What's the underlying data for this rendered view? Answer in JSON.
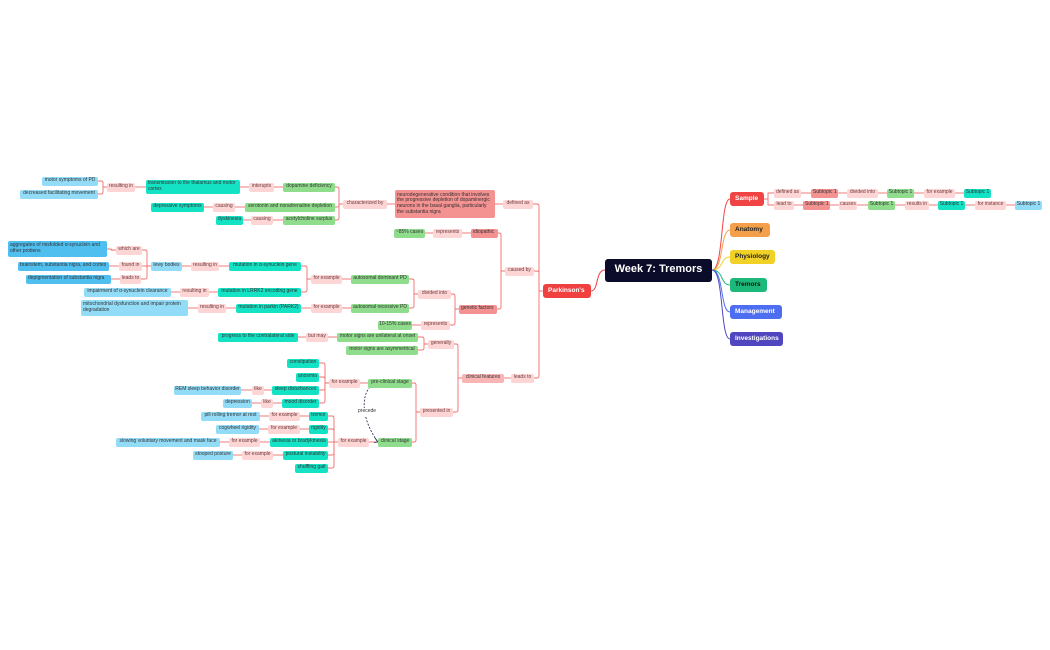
{
  "root": {
    "id": "root",
    "text": "Week 7: Tremors",
    "style": "root"
  },
  "branches": [
    {
      "id": "sample",
      "text": "Sample",
      "color": "#f04444",
      "text_color": "#ffffff"
    },
    {
      "id": "anatomy",
      "text": "Anatomy",
      "color": "#f4a04a",
      "text_color": "#222222"
    },
    {
      "id": "physiology",
      "text": "Physiology",
      "color": "#f2d126",
      "text_color": "#222222"
    },
    {
      "id": "tremors",
      "text": "Tremors",
      "color": "#1db97a",
      "text_color": "#111111"
    },
    {
      "id": "management",
      "text": "Management",
      "color": "#4e6ef2",
      "text_color": "#ffffff"
    },
    {
      "id": "investigations",
      "text": "Investigations",
      "color": "#5046c0",
      "text_color": "#ffffff"
    }
  ],
  "sample_rows": [
    [
      {
        "text": "defined as",
        "style": "pink"
      },
      {
        "text": "Subtopic 1",
        "style": "red"
      },
      {
        "text": "divided into",
        "style": "pink"
      },
      {
        "text": "Subtopic 1",
        "style": "green"
      },
      {
        "text": "for example",
        "style": "pink"
      },
      {
        "text": "Subtopic 1",
        "style": "teal"
      }
    ],
    [
      {
        "text": "lead to",
        "style": "pink"
      },
      {
        "text": "Subtopic 1",
        "style": "red"
      },
      {
        "text": "causes",
        "style": "pink"
      },
      {
        "text": "Subtopic 1",
        "style": "green"
      },
      {
        "text": "results in",
        "style": "pink"
      },
      {
        "text": "Subtopic 1",
        "style": "teal"
      },
      {
        "text": "for instance",
        "style": "pink"
      },
      {
        "text": "Subtopic 1",
        "style": "lblue"
      }
    ]
  ],
  "parkinsons": {
    "id": "n77",
    "text": "Parkinson's",
    "color": "#f04040"
  },
  "nodes": {
    "n1": {
      "text": "motor symptoms of PD",
      "style": "lblue",
      "parent": "n3"
    },
    "n2": {
      "text": "decreased facilitating movement",
      "style": "lblue",
      "parent": "n3"
    },
    "n3": {
      "text": "resulting in",
      "style": "pink",
      "parent": "n4"
    },
    "n4": {
      "text": "transmission to the thalamus and motor cortex",
      "style": "teal",
      "parent": "n5"
    },
    "n5": {
      "text": "interupts",
      "style": "pink",
      "parent": "n6"
    },
    "n6": {
      "text": "dopamine deficiency",
      "style": "green",
      "parent": "n13"
    },
    "n7": {
      "text": "depressive symptoms",
      "style": "teal",
      "parent": "n8"
    },
    "n8": {
      "text": "causing",
      "style": "pink",
      "parent": "n9"
    },
    "n9": {
      "text": "serotonin and noradrenaline depletion",
      "style": "green",
      "parent": "n13"
    },
    "n10": {
      "text": "dyskinesia",
      "style": "teal",
      "parent": "n11"
    },
    "n11": {
      "text": "causing",
      "style": "pink",
      "parent": "n12"
    },
    "n12": {
      "text": "acetylcholine surplus",
      "style": "green",
      "parent": "n13"
    },
    "n13": {
      "text": "characterized by",
      "style": "pink",
      "parent": "n14"
    },
    "n14": {
      "text": "neurodegenerative condition that involves the progressive depletion of dopaminergic neurons in the basal ganglia, particularly the substantia nigra",
      "style": "red",
      "parent": "n15"
    },
    "n15": {
      "text": "defined as",
      "style": "pink",
      "parent": "n77"
    },
    "n16": {
      "text": "~85% cases",
      "style": "green",
      "parent": "n17"
    },
    "n17": {
      "text": "represents",
      "style": "pink",
      "parent": "n18"
    },
    "n18": {
      "text": "idiopathic",
      "style": "red",
      "parent": "n19"
    },
    "n19": {
      "text": "caused by",
      "style": "pink",
      "parent": "n77"
    },
    "n20": {
      "text": "aggregates of misfolded α-synuclein and other protiens",
      "style": "dblue",
      "parent": "n21"
    },
    "n21": {
      "text": "which are",
      "style": "pink",
      "parent": "n26"
    },
    "n22": {
      "text": "brainstem, substantia nigra, and cortex",
      "style": "dblue",
      "parent": "n23"
    },
    "n23": {
      "text": "found in",
      "style": "pink",
      "parent": "n26"
    },
    "n24": {
      "text": "depigmentation of substantia nigra",
      "style": "dblue",
      "parent": "n25"
    },
    "n25": {
      "text": "leads to",
      "style": "pink",
      "parent": "n26"
    },
    "n26": {
      "text": "lewy bodies",
      "style": "lblue",
      "parent": "n27"
    },
    "n27": {
      "text": "resulting in",
      "style": "pink",
      "parent": "n28"
    },
    "n28": {
      "text": "mutation in α-synuclein gene",
      "style": "teal",
      "parent": "n32"
    },
    "n29": {
      "text": "impairment of α-synuclein clearance",
      "style": "lblue",
      "parent": "n30"
    },
    "n30": {
      "text": "resulting in",
      "style": "pink",
      "parent": "n31"
    },
    "n31": {
      "text": "mutation in LRRK2 encoding gene",
      "style": "teal",
      "parent": "n32"
    },
    "n32": {
      "text": "for example",
      "style": "pink",
      "parent": "n33"
    },
    "n33": {
      "text": "autosomal dominant PD",
      "style": "green",
      "parent": "n39"
    },
    "n34": {
      "text": "mitochondrial dysfunction and impair protein degradation",
      "style": "lblue",
      "parent": "n35"
    },
    "n35": {
      "text": "resulting in",
      "style": "pink",
      "parent": "n36"
    },
    "n36": {
      "text": "mutation in parkin (PARK2)",
      "style": "teal",
      "parent": "n37"
    },
    "n37": {
      "text": "for example",
      "style": "pink",
      "parent": "n38"
    },
    "n38": {
      "text": "autosomal recessive PD",
      "style": "green",
      "parent": "n39"
    },
    "n39": {
      "text": "divided into",
      "style": "pink",
      "parent": "n40"
    },
    "n40": {
      "text": "genetic factors",
      "style": "red",
      "parent": "n19"
    },
    "n41": {
      "text": "10-15% cases",
      "style": "green",
      "parent": "n42"
    },
    "n42": {
      "text": "represents",
      "style": "pink",
      "parent": "n40"
    },
    "n43": {
      "text": "progress to the contralateral side",
      "style": "teal",
      "parent": "n44"
    },
    "n44": {
      "text": "but may",
      "style": "pink",
      "parent": "n45"
    },
    "n45": {
      "text": "motor signs are unilateral at onset",
      "style": "green",
      "parent": "n47"
    },
    "n46": {
      "text": "motor signs are asymmetrical",
      "style": "green",
      "parent": "n47"
    },
    "n47": {
      "text": "generally",
      "style": "pink",
      "parent": "n75"
    },
    "n48": {
      "text": "constipation",
      "style": "teal",
      "parent": "n56"
    },
    "n49": {
      "text": "anosmia",
      "style": "teal",
      "parent": "n56"
    },
    "n50": {
      "text": "REM sleep behavior disorder",
      "style": "lblue",
      "parent": "n51"
    },
    "n51": {
      "text": "like",
      "style": "pink",
      "parent": "n52"
    },
    "n52": {
      "text": "sleep disturbances",
      "style": "teal",
      "parent": "n56"
    },
    "n53": {
      "text": "depression",
      "style": "lblue",
      "parent": "n54"
    },
    "n54": {
      "text": "like",
      "style": "pink",
      "parent": "n55"
    },
    "n55": {
      "text": "mood disorder",
      "style": "teal",
      "parent": "n56"
    },
    "n56": {
      "text": "for example",
      "style": "pink",
      "parent": "n57"
    },
    "n57": {
      "text": "pre-clinical stage",
      "style": "green",
      "parent": "n74"
    },
    "n59": {
      "text": "pill rolling tremor at rest",
      "style": "lblue",
      "parent": "n60"
    },
    "n60": {
      "text": "for example",
      "style": "pink",
      "parent": "n61"
    },
    "n61": {
      "text": "tremor",
      "style": "teal",
      "parent": "n72"
    },
    "n62": {
      "text": "cogwheel rigidity",
      "style": "lblue",
      "parent": "n63"
    },
    "n63": {
      "text": "for example",
      "style": "pink",
      "parent": "n64"
    },
    "n64": {
      "text": "rigidity",
      "style": "teal",
      "parent": "n72"
    },
    "n65": {
      "text": "slowing voluntary movement and mask face",
      "style": "lblue",
      "parent": "n66"
    },
    "n66": {
      "text": "for example",
      "style": "pink",
      "parent": "n67"
    },
    "n67": {
      "text": "akinesia or bradykinesia",
      "style": "teal",
      "parent": "n72"
    },
    "n68": {
      "text": "stooped posture",
      "style": "lblue",
      "parent": "n69"
    },
    "n69": {
      "text": "for example",
      "style": "pink",
      "parent": "n70"
    },
    "n70": {
      "text": "postural instability",
      "style": "teal",
      "parent": "n72"
    },
    "n71": {
      "text": "shuffling gait",
      "style": "teal",
      "parent": "n72"
    },
    "n72": {
      "text": "for example",
      "style": "pink",
      "parent": "n73"
    },
    "n73": {
      "text": "clinical stage",
      "style": "green",
      "parent": "n74"
    },
    "n74": {
      "text": "presented in",
      "style": "pink",
      "parent": "n75"
    },
    "n75": {
      "text": "clinical features",
      "style": "lred",
      "parent": "n76"
    },
    "n76": {
      "text": "leads to",
      "style": "pink",
      "parent": "n77"
    }
  },
  "precede_link": {
    "from": "n57",
    "to": "n73",
    "text": "precede",
    "color": "#22224a"
  },
  "colors": {
    "connector": "#f07070",
    "sample_connector": "#f07070"
  }
}
